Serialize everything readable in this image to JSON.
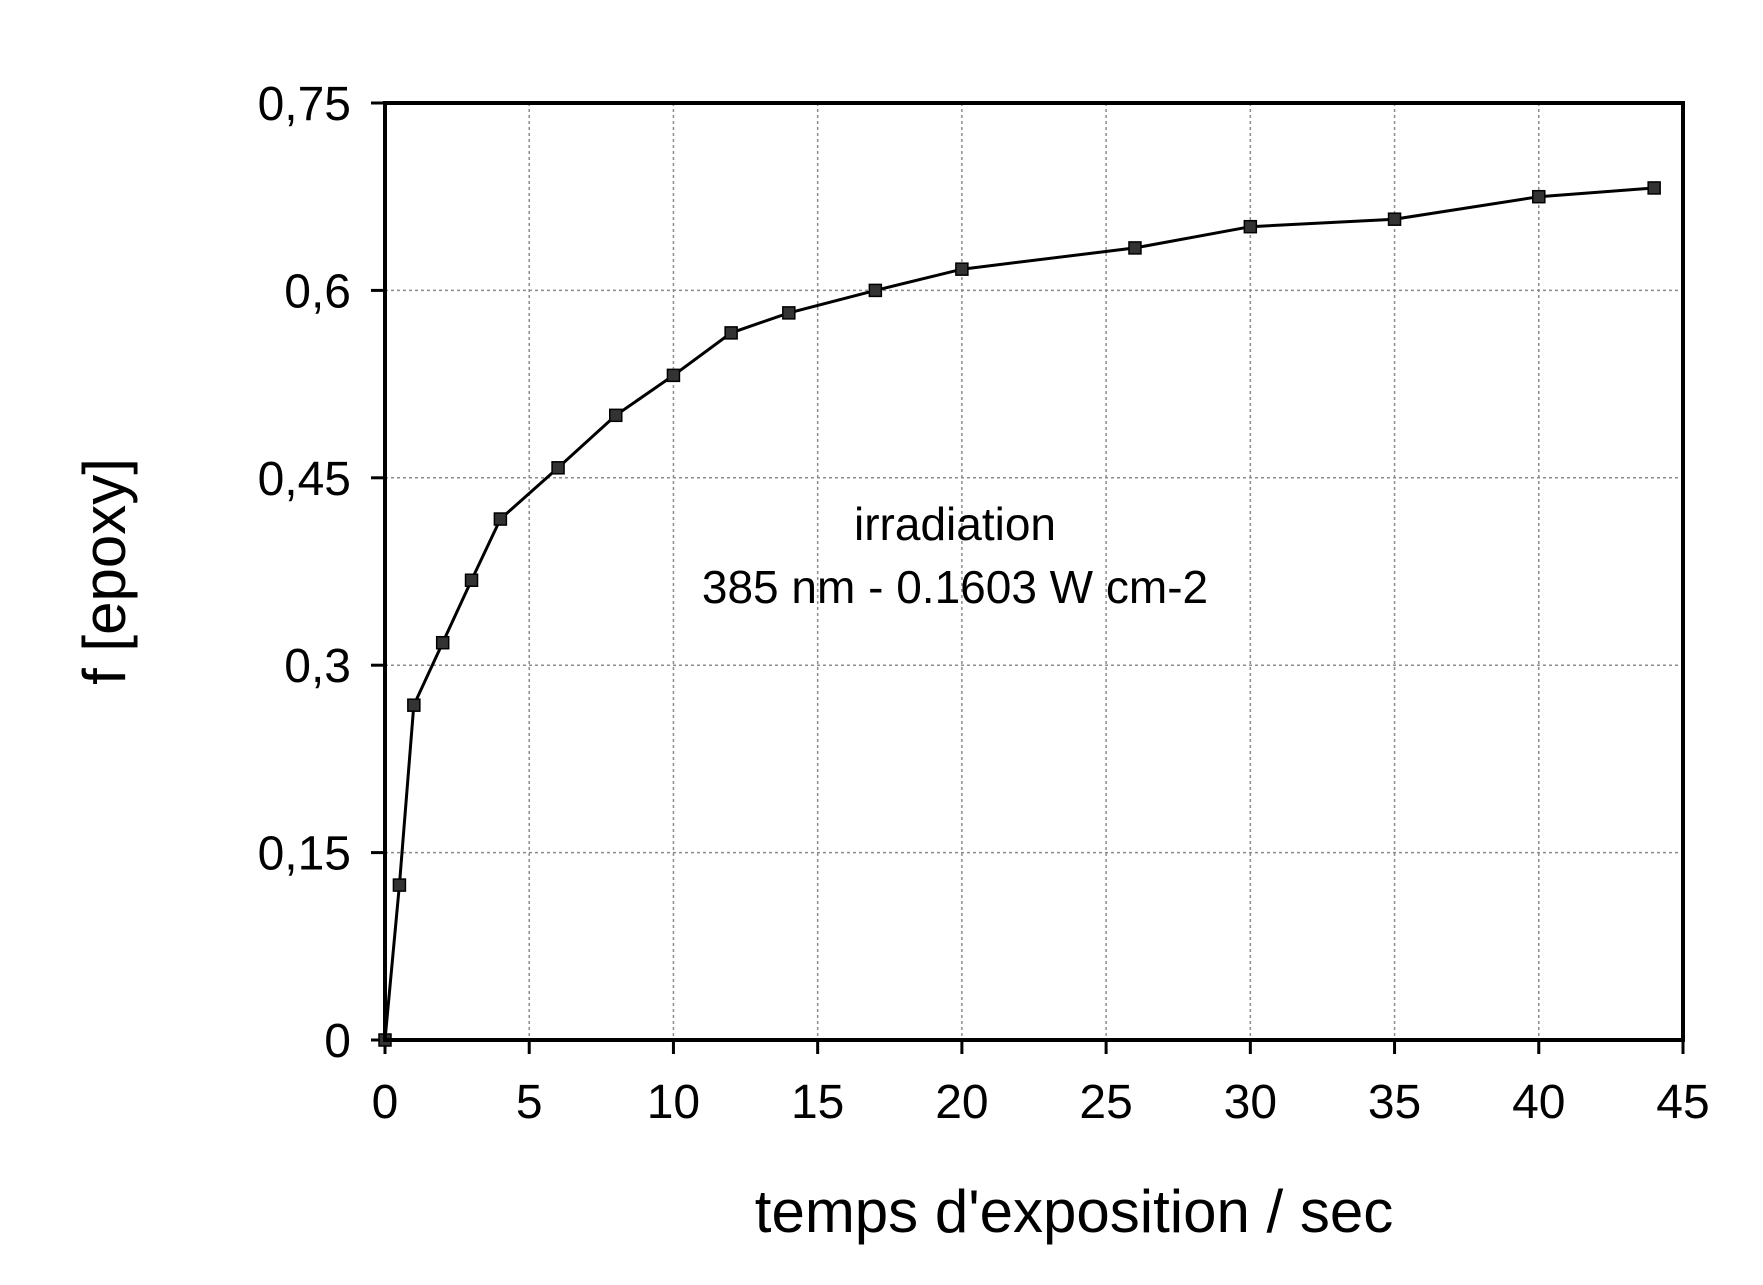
{
  "chart_data": {
    "type": "line",
    "title": "",
    "xlabel": "temps d'exposition  / sec",
    "ylabel": "f [epoxy]",
    "xlim": [
      0,
      45
    ],
    "ylim": [
      0,
      0.75
    ],
    "x_ticks": [
      0,
      5,
      10,
      15,
      20,
      25,
      30,
      35,
      40,
      45
    ],
    "x_tick_labels": [
      "0",
      "5",
      "10",
      "15",
      "20",
      "25",
      "30",
      "35",
      "40",
      "45"
    ],
    "y_ticks": [
      0,
      0.15,
      0.3,
      0.45,
      0.6,
      0.75
    ],
    "y_tick_labels": [
      "0",
      "0,15",
      "0,3",
      "0,45",
      "0,6",
      "0,75"
    ],
    "grid": true,
    "legend": "none",
    "annotations": [
      "irradiation",
      "385 nm - 0.1603 W cm-2"
    ],
    "series": [
      {
        "name": "f [epoxy]",
        "marker": "square",
        "x": [
          0,
          0.5,
          1,
          2,
          3,
          4,
          6,
          8,
          10,
          12,
          14,
          17,
          20,
          26,
          30,
          35,
          40,
          44
        ],
        "y": [
          0,
          0.124,
          0.268,
          0.318,
          0.368,
          0.417,
          0.458,
          0.5,
          0.532,
          0.566,
          0.582,
          0.6,
          0.617,
          0.634,
          0.651,
          0.657,
          0.675,
          0.682
        ]
      }
    ]
  }
}
